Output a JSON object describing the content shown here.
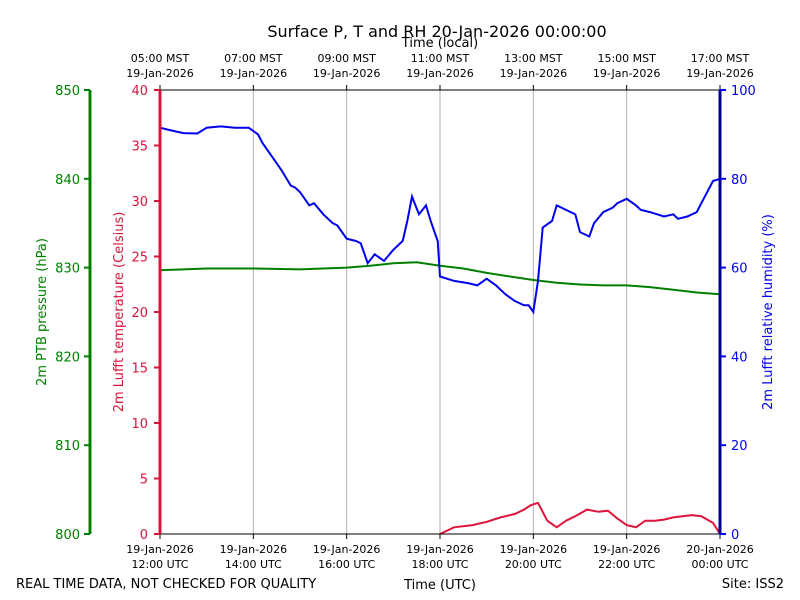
{
  "chart_data": {
    "type": "line",
    "title": "Surface P, T and RH 20-Jan-2026 00:00:00",
    "top_axis_label": "Time (local)",
    "xlabel": "Time (UTC)",
    "footer_left": "REAL TIME DATA, NOT CHECKED FOR QUALITY",
    "footer_right": "Site: ISS2",
    "x_range_utc_hours": [
      12,
      24
    ],
    "colors": {
      "pressure": "#008000",
      "temperature": "#dc143c",
      "humidity": "#0000ee",
      "grid": "#b0b0b0",
      "axis": "#000000"
    },
    "bottom_ticks": [
      {
        "hour": 12,
        "line1": "19-Jan-2026",
        "line2": "12:00 UTC"
      },
      {
        "hour": 14,
        "line1": "19-Jan-2026",
        "line2": "14:00 UTC"
      },
      {
        "hour": 16,
        "line1": "19-Jan-2026",
        "line2": "16:00 UTC"
      },
      {
        "hour": 18,
        "line1": "19-Jan-2026",
        "line2": "18:00 UTC"
      },
      {
        "hour": 20,
        "line1": "19-Jan-2026",
        "line2": "20:00 UTC"
      },
      {
        "hour": 22,
        "line1": "19-Jan-2026",
        "line2": "22:00 UTC"
      },
      {
        "hour": 24,
        "line1": "20-Jan-2026",
        "line2": "00:00 UTC"
      }
    ],
    "top_ticks": [
      {
        "hour": 12,
        "line1": "05:00 MST",
        "line2": "19-Jan-2026"
      },
      {
        "hour": 14,
        "line1": "07:00 MST",
        "line2": "19-Jan-2026"
      },
      {
        "hour": 16,
        "line1": "09:00 MST",
        "line2": "19-Jan-2026"
      },
      {
        "hour": 18,
        "line1": "11:00 MST",
        "line2": "19-Jan-2026"
      },
      {
        "hour": 20,
        "line1": "13:00 MST",
        "line2": "19-Jan-2026"
      },
      {
        "hour": 22,
        "line1": "15:00 MST",
        "line2": "19-Jan-2026"
      },
      {
        "hour": 24,
        "line1": "17:00 MST",
        "line2": "19-Jan-2026"
      }
    ],
    "axes": {
      "pressure": {
        "label": "2m PTB pressure (hPa)",
        "ylim": [
          800,
          850
        ],
        "ticks": [
          800,
          810,
          820,
          830,
          840,
          850
        ]
      },
      "temperature": {
        "label": "2m Lufft temperature (Celsius)",
        "ylim": [
          0,
          40
        ],
        "ticks": [
          0,
          5,
          10,
          15,
          20,
          25,
          30,
          35,
          40
        ]
      },
      "humidity": {
        "label": "2m Lufft relative humidity (%)",
        "ylim": [
          0,
          100
        ],
        "ticks": [
          0,
          20,
          40,
          60,
          80,
          100
        ]
      }
    },
    "series": [
      {
        "name": "2m PTB pressure (hPa)",
        "axis": "pressure",
        "x": [
          12.0,
          13.0,
          14.0,
          15.0,
          16.0,
          16.5,
          17.0,
          17.5,
          18.0,
          18.5,
          19.0,
          19.5,
          20.0,
          20.5,
          21.0,
          21.5,
          22.0,
          22.5,
          23.0,
          23.5,
          24.0
        ],
        "y": [
          829.7,
          829.9,
          829.9,
          829.8,
          830.0,
          830.2,
          830.5,
          830.6,
          830.2,
          829.9,
          829.4,
          829.0,
          828.6,
          828.3,
          828.1,
          828.0,
          828.0,
          827.8,
          827.5,
          827.2,
          827.0
        ]
      },
      {
        "name": "2m Lufft temperature (Celsius)",
        "axis": "temperature",
        "x": [
          18.0,
          18.3,
          18.7,
          19.0,
          19.3,
          19.6,
          19.8,
          19.95,
          20.1,
          20.3,
          20.5,
          20.7,
          20.9,
          21.15,
          21.4,
          21.6,
          21.8,
          22.0,
          22.2,
          22.4,
          22.6,
          22.8,
          23.0,
          23.2,
          23.4,
          23.6,
          23.85,
          24.0
        ],
        "y": [
          0.0,
          0.6,
          0.8,
          1.1,
          1.5,
          1.8,
          2.2,
          2.6,
          2.8,
          1.2,
          0.6,
          1.2,
          1.6,
          2.2,
          2.0,
          2.1,
          1.4,
          0.8,
          0.6,
          1.2,
          1.2,
          1.3,
          1.5,
          1.6,
          1.7,
          1.6,
          1.0,
          0.0
        ]
      },
      {
        "name": "2m Lufft relative humidity (%)",
        "axis": "humidity",
        "x": [
          12.0,
          12.2,
          12.5,
          12.8,
          13.0,
          13.3,
          13.6,
          13.9,
          14.1,
          14.2,
          14.4,
          14.5,
          14.6,
          14.8,
          14.9,
          15.0,
          15.2,
          15.3,
          15.5,
          15.7,
          15.8,
          16.0,
          16.2,
          16.3,
          16.45,
          16.6,
          16.8,
          17.0,
          17.2,
          17.3,
          17.4,
          17.55,
          17.7,
          17.8,
          17.9,
          17.95,
          18.0,
          18.3,
          18.6,
          18.8,
          19.0,
          19.2,
          19.4,
          19.6,
          19.8,
          19.9,
          20.0,
          20.1,
          20.2,
          20.4,
          20.5,
          20.7,
          20.9,
          21.0,
          21.2,
          21.3,
          21.5,
          21.7,
          21.8,
          22.0,
          22.2,
          22.3,
          22.5,
          22.8,
          23.0,
          23.1,
          23.3,
          23.5,
          23.7,
          23.85,
          24.0
        ],
        "y": [
          91.5,
          91.0,
          90.3,
          90.2,
          91.5,
          91.8,
          91.5,
          91.5,
          90.0,
          88.0,
          85.0,
          83.5,
          82.0,
          78.5,
          78.0,
          77.0,
          74.0,
          74.5,
          72.0,
          70.0,
          69.5,
          66.5,
          66.0,
          65.5,
          61.0,
          63.0,
          61.5,
          64.0,
          66.0,
          70.5,
          76.0,
          72.0,
          74.0,
          70.5,
          67.5,
          66.0,
          58.0,
          57.0,
          56.5,
          56.0,
          57.5,
          56.0,
          54.0,
          52.5,
          51.5,
          51.5,
          50.0,
          57.0,
          69.0,
          70.5,
          74.0,
          73.0,
          72.0,
          68.0,
          67.0,
          70.0,
          72.5,
          73.5,
          74.5,
          75.5,
          74.0,
          73.0,
          72.5,
          71.5,
          72.0,
          71.0,
          71.5,
          72.5,
          76.5,
          79.5,
          80.0
        ]
      }
    ]
  }
}
